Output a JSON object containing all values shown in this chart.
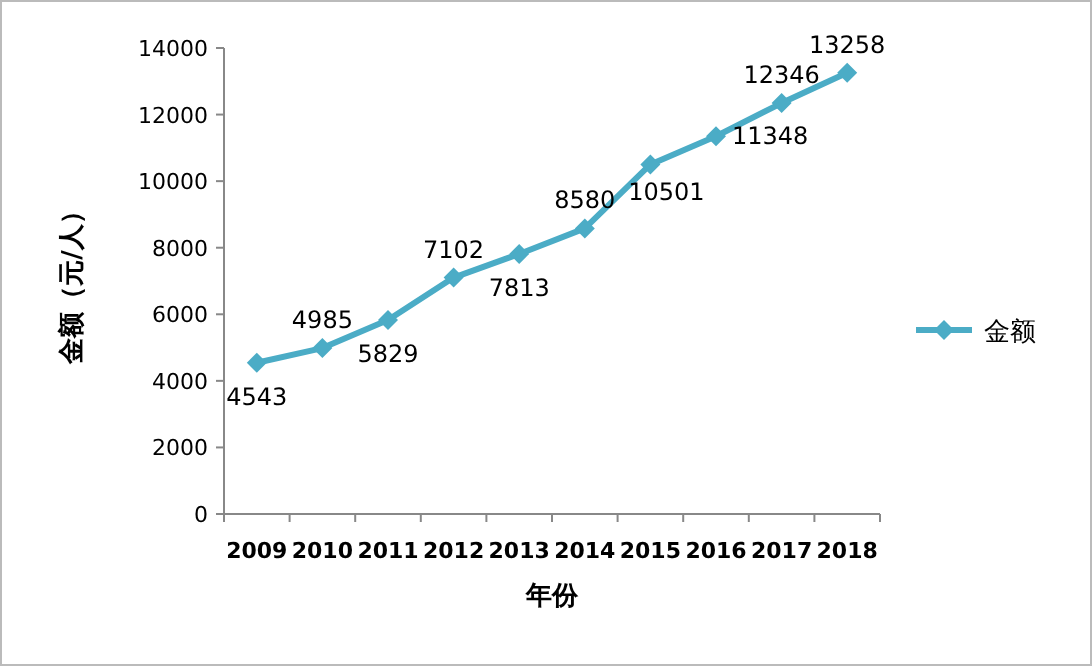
{
  "chart_data": {
    "type": "line",
    "xlabel": "年份",
    "ylabel": "金额（元/人）",
    "categories": [
      "2009",
      "2010",
      "2011",
      "2012",
      "2013",
      "2014",
      "2015",
      "2016",
      "2017",
      "2018"
    ],
    "series": [
      {
        "name": "金额",
        "color": "#4bacc6",
        "values": [
          4543,
          4985,
          5829,
          7102,
          7813,
          8580,
          10501,
          11348,
          12346,
          13258
        ]
      }
    ],
    "ylim": [
      0,
      14000
    ],
    "yticks": [
      0,
      2000,
      4000,
      6000,
      8000,
      10000,
      12000,
      14000
    ],
    "grid": false,
    "legend": "right",
    "marker": "diamond",
    "line_style": "solid",
    "data_labels": true
  }
}
